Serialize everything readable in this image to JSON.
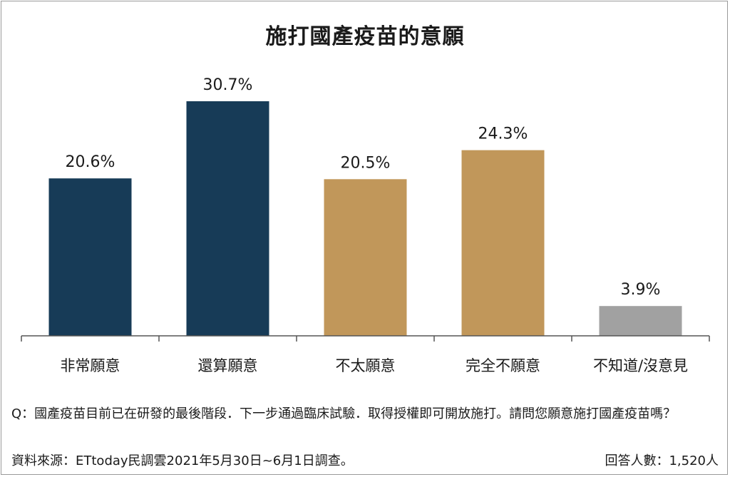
{
  "chart_data": {
    "type": "bar",
    "title": "施打國產疫苗的意願",
    "categories": [
      "非常願意",
      "還算願意",
      "不太願意",
      "完全不願意",
      "不知道/沒意見"
    ],
    "values": [
      20.6,
      30.7,
      20.5,
      24.3,
      3.9
    ],
    "value_labels": [
      "20.6%",
      "30.7%",
      "20.5%",
      "24.3%",
      "3.9%"
    ],
    "unit": "%",
    "colors": [
      "#173b57",
      "#173b57",
      "#c1975a",
      "#c1975a",
      "#a1a1a1"
    ],
    "ylim": [
      0,
      30.7
    ],
    "grid": false,
    "legend": "none"
  },
  "footer": {
    "question": "Q：國產疫苗目前已在研發的最後階段．下一步通過臨床試驗．取得授權即可開放施打。請問您願意施打國產疫苗嗎？",
    "source": "資料來源：ETtoday民調雲2021年5月30日~6月1日調查。",
    "respondents": "回答人數：1,520人"
  }
}
